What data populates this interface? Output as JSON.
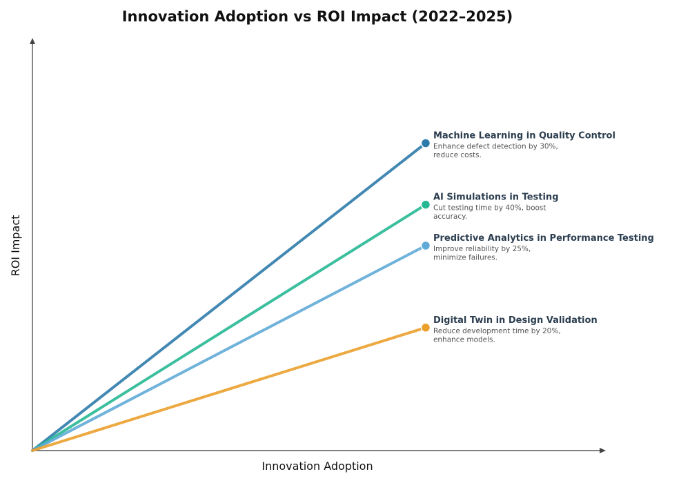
{
  "chart_data": {
    "type": "line",
    "title": "Innovation Adoption vs ROI Impact (2022–2025)",
    "xlabel": "Innovation Adoption",
    "ylabel": "ROI Impact",
    "xlim": [
      0,
      1
    ],
    "ylim": [
      0,
      1
    ],
    "grid": false,
    "axis_ticks": false,
    "series": [
      {
        "name": "Machine Learning in Quality Control",
        "description": [
          "Enhance defect detection by 30%,",
          "reduce costs."
        ],
        "color": "#2e7bab",
        "x": [
          0,
          0.69
        ],
        "y": [
          0,
          0.75
        ]
      },
      {
        "name": "AI Simulations in Testing",
        "description": [
          "Cut testing time by 40%, boost",
          "accuracy."
        ],
        "color": "#26b894",
        "x": [
          0,
          0.69
        ],
        "y": [
          0,
          0.6
        ]
      },
      {
        "name": "Predictive Analytics in Performance Testing",
        "description": [
          "Improve reliability by 25%,",
          "minimize failures."
        ],
        "color": "#5faad6",
        "x": [
          0,
          0.69
        ],
        "y": [
          0,
          0.5
        ]
      },
      {
        "name": "Digital Twin in Design Validation",
        "description": [
          "Reduce development time by 20%,",
          "enhance models."
        ],
        "color": "#eba02c",
        "x": [
          0,
          0.69
        ],
        "y": [
          0,
          0.3
        ]
      }
    ]
  }
}
